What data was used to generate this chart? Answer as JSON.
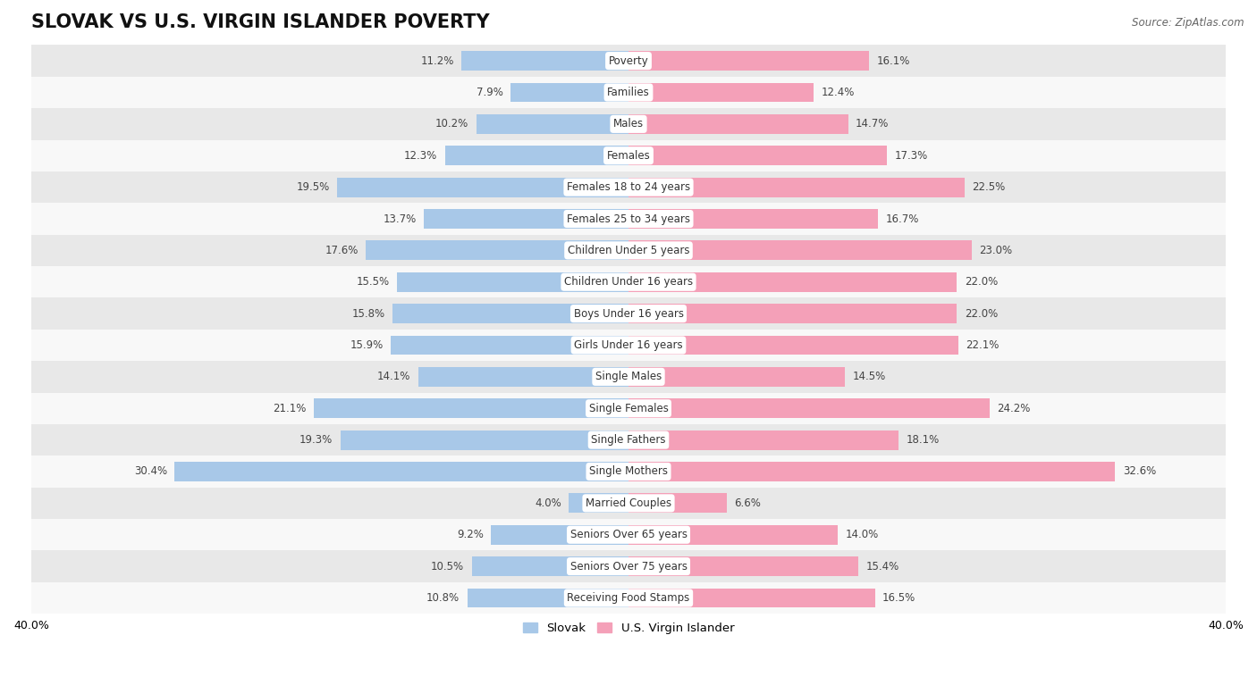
{
  "title": "SLOVAK VS U.S. VIRGIN ISLANDER POVERTY",
  "source_text": "Source: ZipAtlas.com",
  "categories": [
    "Poverty",
    "Families",
    "Males",
    "Females",
    "Females 18 to 24 years",
    "Females 25 to 34 years",
    "Children Under 5 years",
    "Children Under 16 years",
    "Boys Under 16 years",
    "Girls Under 16 years",
    "Single Males",
    "Single Females",
    "Single Fathers",
    "Single Mothers",
    "Married Couples",
    "Seniors Over 65 years",
    "Seniors Over 75 years",
    "Receiving Food Stamps"
  ],
  "slovak_values": [
    11.2,
    7.9,
    10.2,
    12.3,
    19.5,
    13.7,
    17.6,
    15.5,
    15.8,
    15.9,
    14.1,
    21.1,
    19.3,
    30.4,
    4.0,
    9.2,
    10.5,
    10.8
  ],
  "usvi_values": [
    16.1,
    12.4,
    14.7,
    17.3,
    22.5,
    16.7,
    23.0,
    22.0,
    22.0,
    22.1,
    14.5,
    24.2,
    18.1,
    32.6,
    6.6,
    14.0,
    15.4,
    16.5
  ],
  "slovak_color": "#a8c8e8",
  "usvi_color": "#f4a0b8",
  "slovak_label": "Slovak",
  "usvi_label": "U.S. Virgin Islander",
  "xlim": 40.0,
  "bar_height": 0.62,
  "row_colors": [
    "#e8e8e8",
    "#f8f8f8"
  ],
  "bg_color": "#ffffff",
  "title_fontsize": 15,
  "label_fontsize": 8.5,
  "value_fontsize": 8.5,
  "axis_label_fontsize": 9
}
